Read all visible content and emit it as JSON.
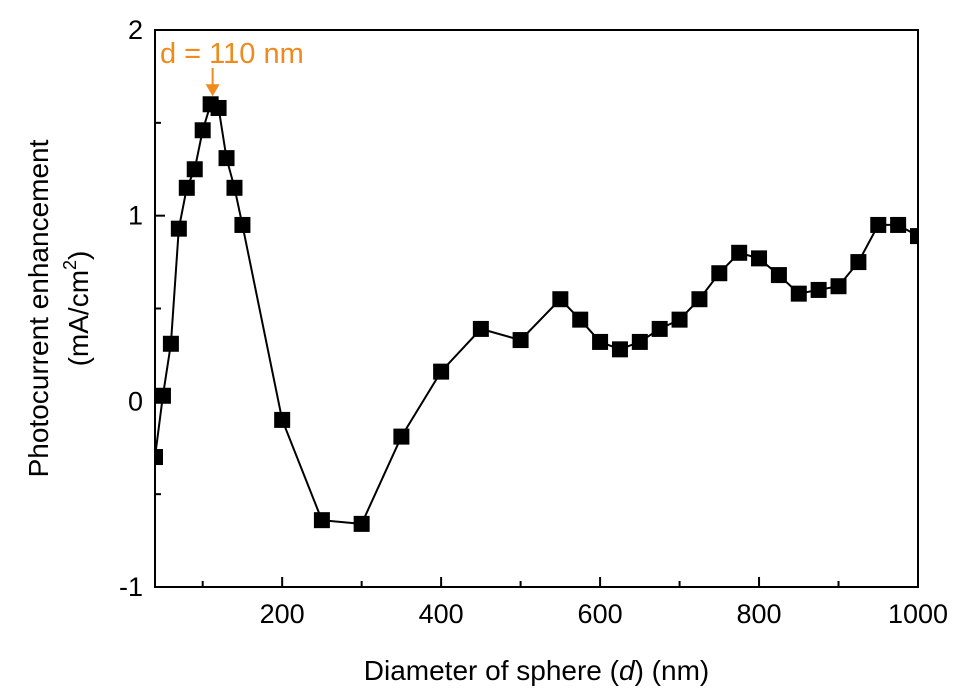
{
  "chart_data": {
    "type": "line",
    "marker": "square",
    "xlabel": "Diameter of sphere (d) (nm)",
    "xlabel_parts": [
      "Diameter of sphere (",
      "d",
      ") (nm)"
    ],
    "ylabel_line1": "Photocurrent enhancement",
    "ylabel_line2_parts": [
      "(mA/cm",
      "2",
      ")"
    ],
    "xlim": [
      40,
      1000
    ],
    "ylim": [
      -1,
      2
    ],
    "xticks": [
      200,
      400,
      600,
      800,
      1000
    ],
    "yticks": [
      -1,
      0,
      1,
      2
    ],
    "xtick_labels": [
      "200",
      "400",
      "600",
      "800",
      "1000"
    ],
    "ytick_labels": [
      "-1",
      "0",
      "1",
      "2"
    ],
    "x": [
      40,
      50,
      60,
      70,
      80,
      90,
      100,
      110,
      120,
      130,
      140,
      150,
      200,
      250,
      300,
      350,
      400,
      450,
      500,
      550,
      575,
      600,
      625,
      650,
      675,
      700,
      725,
      750,
      775,
      800,
      825,
      850,
      875,
      900,
      925,
      950,
      975,
      1000
    ],
    "y": [
      -0.3,
      0.03,
      0.31,
      0.93,
      1.15,
      1.25,
      1.46,
      1.6,
      1.58,
      1.31,
      1.15,
      0.95,
      -0.1,
      -0.64,
      -0.66,
      -0.19,
      0.16,
      0.39,
      0.33,
      0.55,
      0.44,
      0.32,
      0.28,
      0.32,
      0.39,
      0.44,
      0.55,
      0.69,
      0.8,
      0.77,
      0.68,
      0.58,
      0.6,
      0.62,
      0.75,
      0.95,
      0.95,
      0.89
    ],
    "annotation": {
      "text": "d = 110 nm",
      "x": 110,
      "y": 1.6,
      "color": "#f08a1c"
    },
    "colors": {
      "line": "#000000",
      "marker": "#000000",
      "axis": "#000000"
    }
  }
}
